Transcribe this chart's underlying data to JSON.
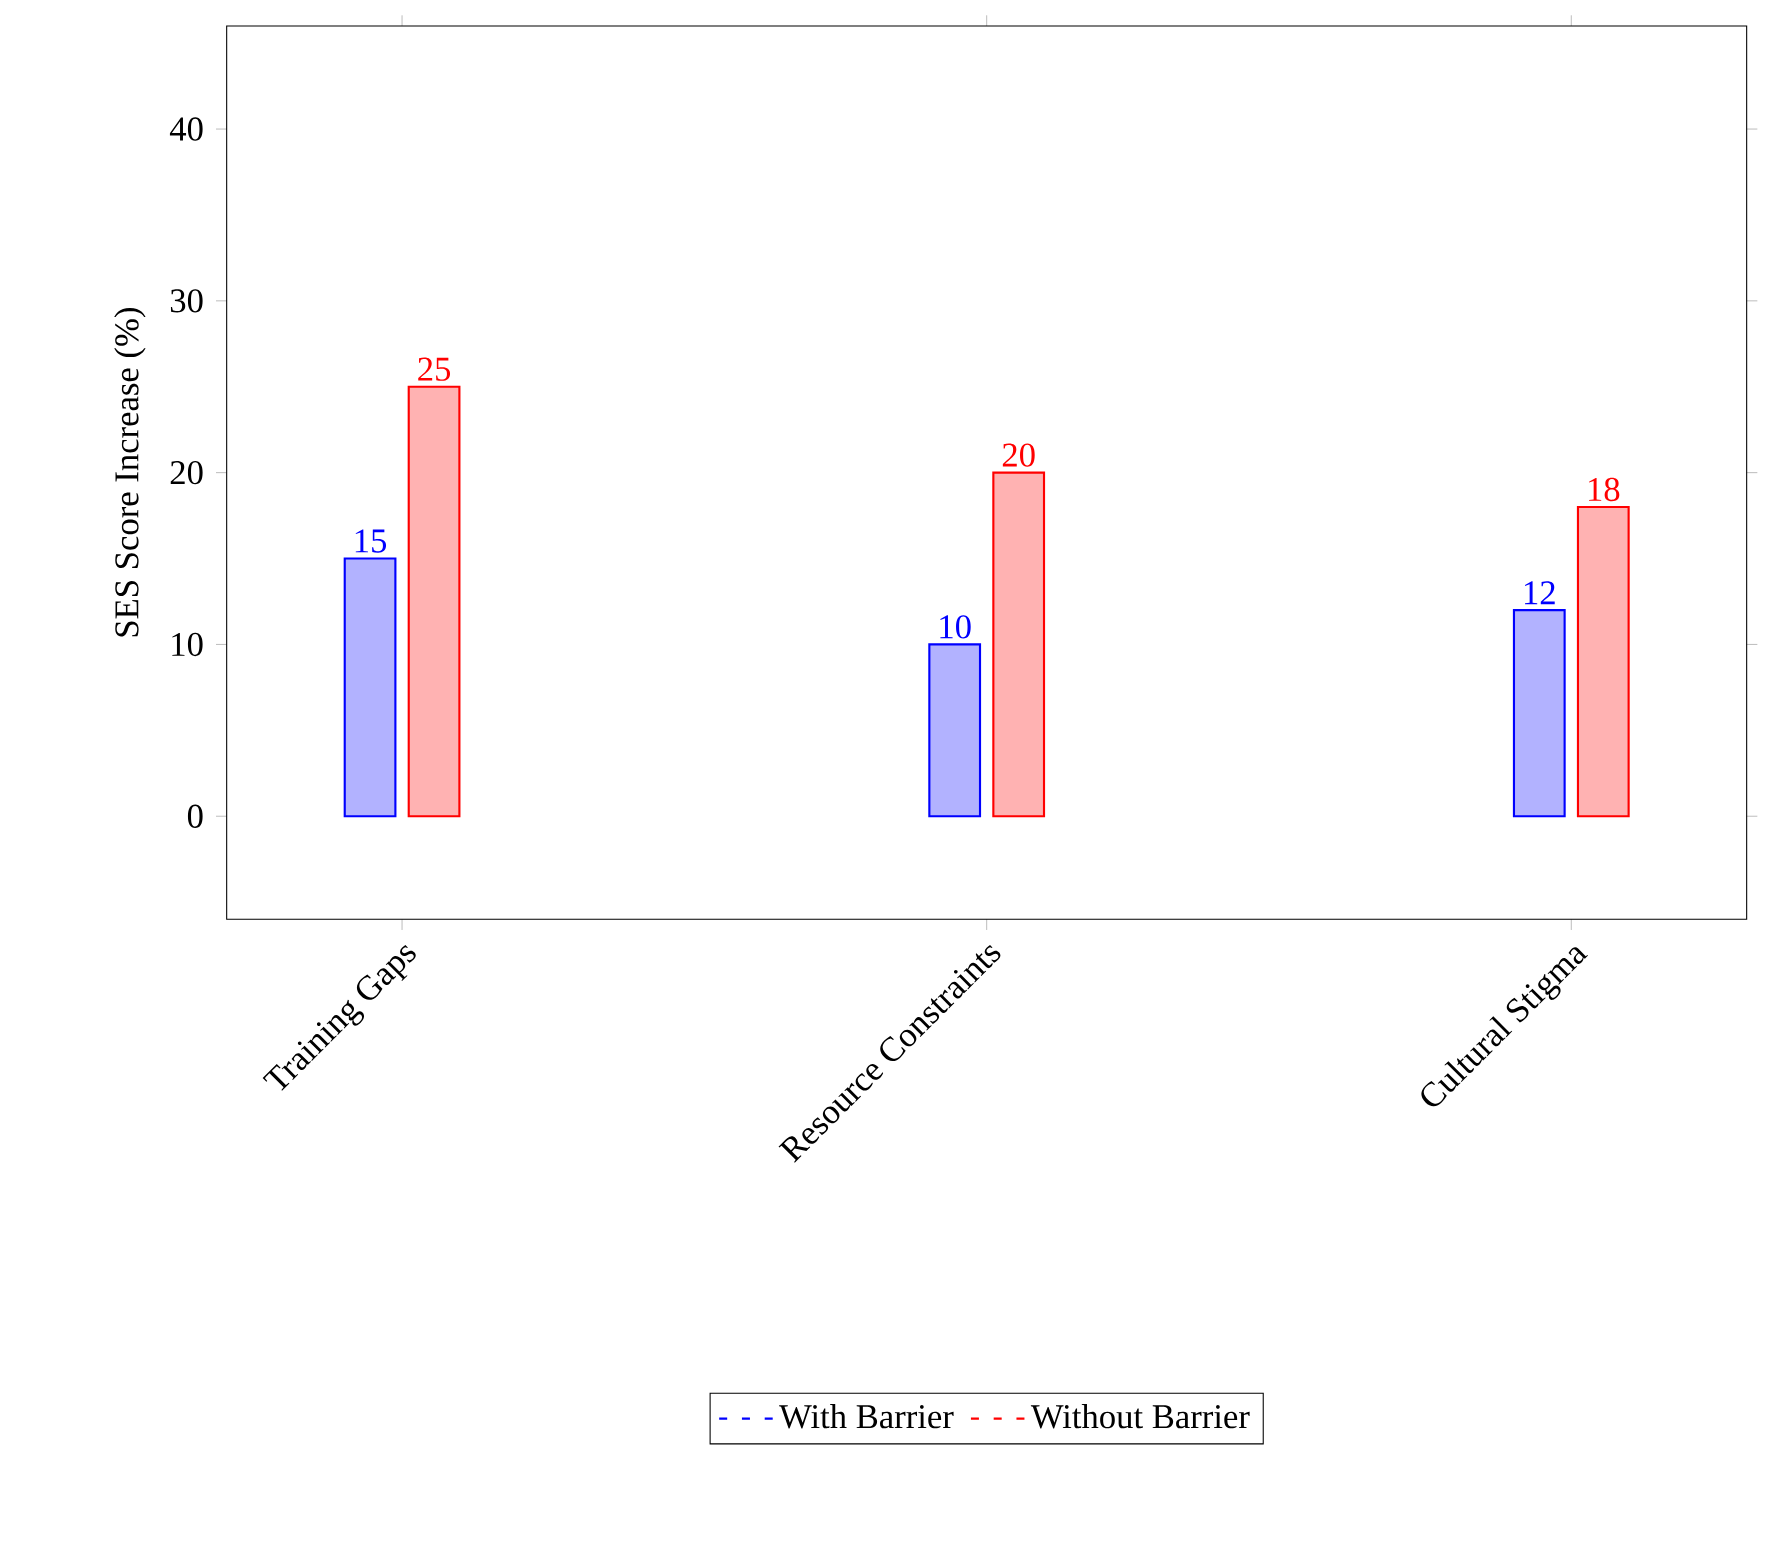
{
  "chart_data": {
    "type": "bar",
    "ylabel": "SES Score Increase (%)",
    "categories": [
      "Training Gaps",
      "Resource Constraints",
      "Cultural Stigma"
    ],
    "series": [
      {
        "name": "With Barrier",
        "color": "#0000ff",
        "values": [
          15,
          10,
          12
        ]
      },
      {
        "name": "Without Barrier",
        "color": "#ff0000",
        "values": [
          25,
          20,
          18
        ]
      }
    ],
    "ylim": [
      -6,
      46
    ],
    "yticks": [
      0,
      10,
      20,
      30,
      40
    ],
    "grid": false,
    "legend": "bottom",
    "data_labels": true
  }
}
